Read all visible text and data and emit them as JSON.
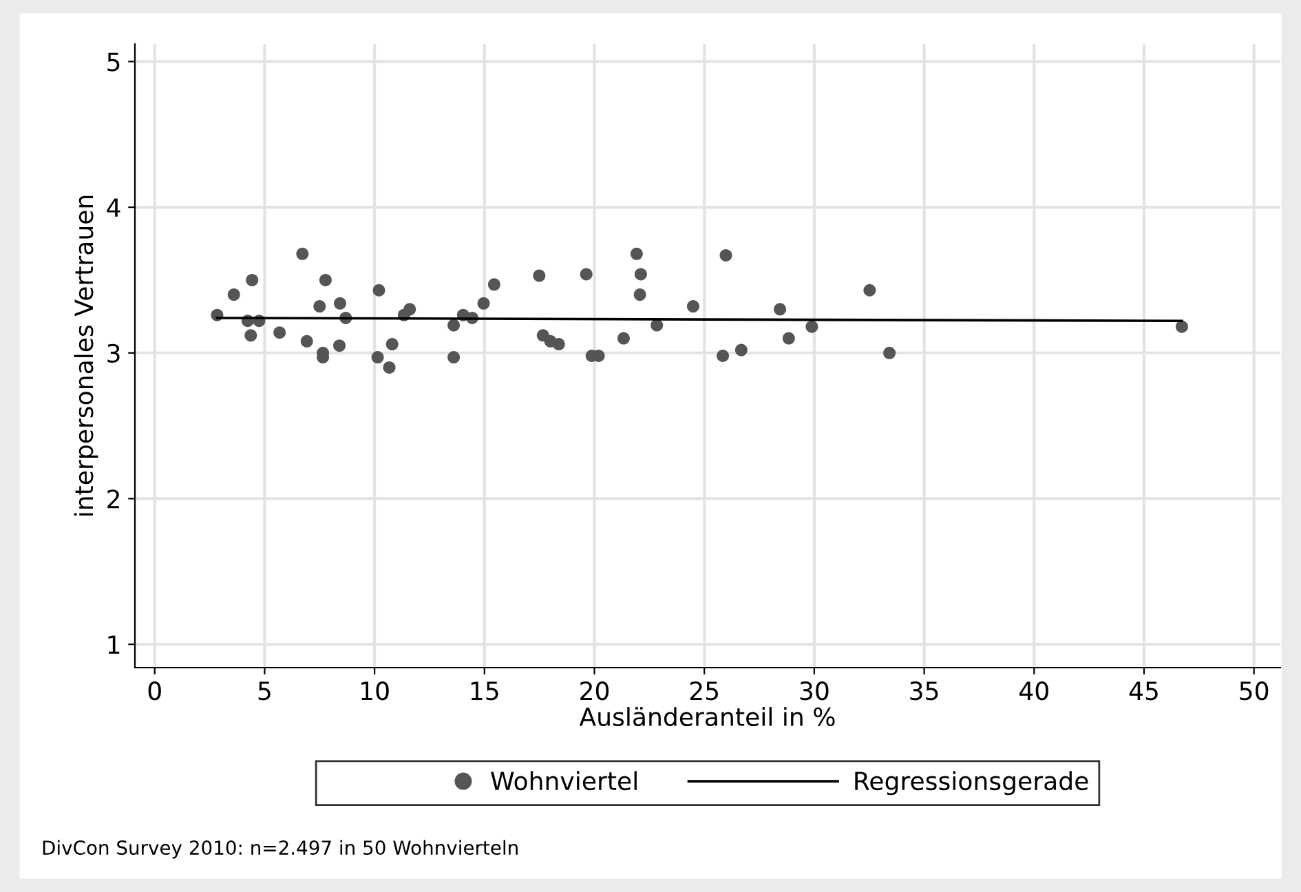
{
  "chart_data": {
    "type": "scatter",
    "xlabel": "Ausländeranteil in %",
    "ylabel": "interpersonales Vertrauen",
    "xlim": [
      -0.9,
      51.2
    ],
    "ylim": [
      0.84,
      5.12
    ],
    "xticks": [
      0,
      5,
      10,
      15,
      20,
      25,
      30,
      35,
      40,
      45,
      50
    ],
    "yticks": [
      1,
      2,
      3,
      4,
      5
    ],
    "grid": true,
    "legend": "bottom",
    "marker": "circle",
    "series": [
      {
        "name": "Wohnviertel",
        "color": "#555555",
        "x": [
          2.84,
          3.6,
          4.43,
          4.23,
          4.75,
          4.37,
          5.68,
          6.72,
          6.92,
          7.65,
          7.65,
          7.77,
          7.5,
          8.43,
          8.4,
          8.69,
          10.2,
          10.14,
          10.67,
          10.8,
          11.34,
          11.6,
          13.6,
          13.6,
          14.03,
          14.44,
          14.96,
          15.44,
          17.49,
          17.66,
          18.0,
          18.38,
          19.63,
          19.88,
          20.19,
          21.33,
          21.92,
          22.11,
          22.07,
          22.84,
          24.49,
          25.98,
          25.84,
          26.68,
          28.44,
          28.84,
          29.89,
          32.52,
          33.42,
          46.72
        ],
        "values": [
          3.26,
          3.4,
          3.5,
          3.22,
          3.22,
          3.12,
          3.14,
          3.68,
          3.08,
          3.0,
          2.97,
          3.5,
          3.32,
          3.34,
          3.05,
          3.24,
          3.43,
          2.97,
          2.9,
          3.06,
          3.26,
          3.3,
          3.19,
          2.97,
          3.26,
          3.24,
          3.34,
          3.47,
          3.53,
          3.12,
          3.08,
          3.06,
          3.54,
          2.98,
          2.98,
          3.1,
          3.68,
          3.54,
          3.4,
          3.19,
          3.32,
          3.67,
          2.98,
          3.02,
          3.3,
          3.1,
          3.18,
          3.43,
          3.0,
          3.18
        ]
      },
      {
        "name": "Regressionsgerade",
        "type": "line",
        "color": "#000000",
        "marker": "none",
        "line_style": "solid",
        "x": [
          2.84,
          46.72
        ],
        "values": [
          3.24,
          3.22
        ]
      }
    ],
    "annotations": [
      "DivCon Survey 2010: n=2.497 in 50 Wohnvierteln"
    ]
  }
}
